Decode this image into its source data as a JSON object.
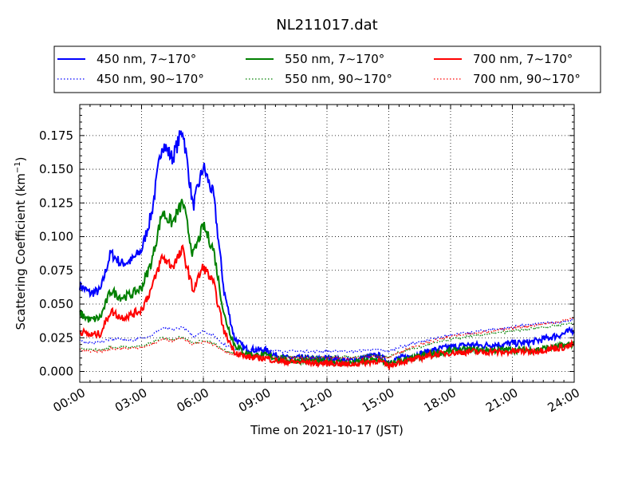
{
  "chart_data": {
    "type": "line",
    "title": "NL211017.dat",
    "xlabel": "Time on 2021-10-17 (JST)",
    "ylabel_main": "Scattering Coefficient (km",
    "ylabel_sup": "−1",
    "ylabel_close": ")",
    "xlim": [
      0,
      24
    ],
    "ylim": [
      -0.008,
      0.198
    ],
    "x_ticks": [
      0,
      3,
      6,
      9,
      12,
      15,
      18,
      21,
      24
    ],
    "x_tick_labels": [
      "00:00",
      "03:00",
      "06:00",
      "09:00",
      "12:00",
      "15:00",
      "18:00",
      "21:00",
      "24:00"
    ],
    "y_ticks": [
      0.0,
      0.025,
      0.05,
      0.075,
      0.1,
      0.125,
      0.15,
      0.175
    ],
    "y_tick_labels": [
      "0.000",
      "0.025",
      "0.050",
      "0.075",
      "0.100",
      "0.125",
      "0.150",
      "0.175"
    ],
    "grid": true,
    "legend_placement": "top",
    "x": [
      0.0,
      0.5,
      1.0,
      1.5,
      2.0,
      2.5,
      3.0,
      3.5,
      4.0,
      4.5,
      5.0,
      5.5,
      6.0,
      6.5,
      7.0,
      7.5,
      8.0,
      8.5,
      9.0,
      9.5,
      10.0,
      10.5,
      11.0,
      11.5,
      12.0,
      12.5,
      13.0,
      13.5,
      14.0,
      14.5,
      15.0,
      15.5,
      16.0,
      16.5,
      17.0,
      17.5,
      18.0,
      18.5,
      19.0,
      19.5,
      20.0,
      20.5,
      21.0,
      21.5,
      22.0,
      22.5,
      23.0,
      23.5,
      24.0
    ],
    "series": [
      {
        "name": "450 nm, 7∼170°",
        "color": "#0000ff",
        "style": "solid",
        "values": [
          0.064,
          0.058,
          0.06,
          0.088,
          0.08,
          0.082,
          0.09,
          0.118,
          0.17,
          0.158,
          0.18,
          0.122,
          0.152,
          0.13,
          0.06,
          0.025,
          0.017,
          0.016,
          0.016,
          0.012,
          0.01,
          0.01,
          0.01,
          0.009,
          0.01,
          0.009,
          0.008,
          0.009,
          0.011,
          0.012,
          0.007,
          0.01,
          0.011,
          0.013,
          0.015,
          0.017,
          0.018,
          0.019,
          0.02,
          0.019,
          0.02,
          0.02,
          0.021,
          0.021,
          0.022,
          0.024,
          0.026,
          0.028,
          0.031
        ]
      },
      {
        "name": "450 nm, 90∼170°",
        "color": "#0000ff",
        "style": "dotted",
        "values": [
          0.023,
          0.021,
          0.022,
          0.024,
          0.024,
          0.023,
          0.025,
          0.027,
          0.032,
          0.031,
          0.033,
          0.026,
          0.03,
          0.027,
          0.02,
          0.017,
          0.016,
          0.016,
          0.016,
          0.015,
          0.015,
          0.015,
          0.015,
          0.015,
          0.015,
          0.015,
          0.015,
          0.015,
          0.016,
          0.016,
          0.015,
          0.018,
          0.02,
          0.022,
          0.024,
          0.025,
          0.027,
          0.028,
          0.029,
          0.03,
          0.031,
          0.032,
          0.033,
          0.034,
          0.035,
          0.036,
          0.036,
          0.037,
          0.038
        ]
      },
      {
        "name": "550 nm, 7∼170°",
        "color": "#008000",
        "style": "solid",
        "values": [
          0.043,
          0.038,
          0.04,
          0.06,
          0.055,
          0.057,
          0.062,
          0.082,
          0.118,
          0.11,
          0.126,
          0.086,
          0.108,
          0.09,
          0.042,
          0.02,
          0.014,
          0.012,
          0.012,
          0.01,
          0.008,
          0.008,
          0.008,
          0.007,
          0.008,
          0.007,
          0.006,
          0.007,
          0.008,
          0.009,
          0.005,
          0.008,
          0.009,
          0.011,
          0.013,
          0.014,
          0.015,
          0.016,
          0.016,
          0.016,
          0.016,
          0.016,
          0.016,
          0.016,
          0.016,
          0.017,
          0.018,
          0.019,
          0.021
        ]
      },
      {
        "name": "550 nm, 90∼170°",
        "color": "#008000",
        "style": "dotted",
        "values": [
          0.017,
          0.016,
          0.016,
          0.018,
          0.018,
          0.018,
          0.019,
          0.021,
          0.025,
          0.024,
          0.026,
          0.021,
          0.023,
          0.021,
          0.016,
          0.013,
          0.012,
          0.012,
          0.012,
          0.011,
          0.011,
          0.011,
          0.011,
          0.011,
          0.011,
          0.011,
          0.011,
          0.011,
          0.012,
          0.012,
          0.011,
          0.014,
          0.016,
          0.018,
          0.02,
          0.022,
          0.024,
          0.025,
          0.026,
          0.027,
          0.028,
          0.029,
          0.03,
          0.031,
          0.032,
          0.033,
          0.034,
          0.035,
          0.036
        ]
      },
      {
        "name": "700 nm, 7∼170°",
        "color": "#ff0000",
        "style": "solid",
        "values": [
          0.03,
          0.027,
          0.028,
          0.045,
          0.04,
          0.042,
          0.046,
          0.062,
          0.085,
          0.078,
          0.09,
          0.06,
          0.078,
          0.065,
          0.03,
          0.015,
          0.011,
          0.01,
          0.01,
          0.008,
          0.007,
          0.007,
          0.007,
          0.006,
          0.006,
          0.006,
          0.005,
          0.006,
          0.007,
          0.008,
          0.004,
          0.007,
          0.008,
          0.01,
          0.012,
          0.013,
          0.014,
          0.014,
          0.015,
          0.014,
          0.015,
          0.014,
          0.015,
          0.015,
          0.015,
          0.016,
          0.017,
          0.018,
          0.02
        ]
      },
      {
        "name": "700 nm, 90∼170°",
        "color": "#ff0000",
        "style": "dotted",
        "values": [
          0.016,
          0.015,
          0.015,
          0.017,
          0.017,
          0.017,
          0.018,
          0.02,
          0.024,
          0.023,
          0.025,
          0.02,
          0.022,
          0.02,
          0.015,
          0.012,
          0.011,
          0.011,
          0.011,
          0.01,
          0.01,
          0.01,
          0.01,
          0.01,
          0.01,
          0.01,
          0.01,
          0.01,
          0.011,
          0.011,
          0.01,
          0.014,
          0.017,
          0.02,
          0.022,
          0.024,
          0.026,
          0.027,
          0.028,
          0.029,
          0.03,
          0.031,
          0.032,
          0.033,
          0.034,
          0.035,
          0.036,
          0.038,
          0.04
        ]
      }
    ]
  }
}
